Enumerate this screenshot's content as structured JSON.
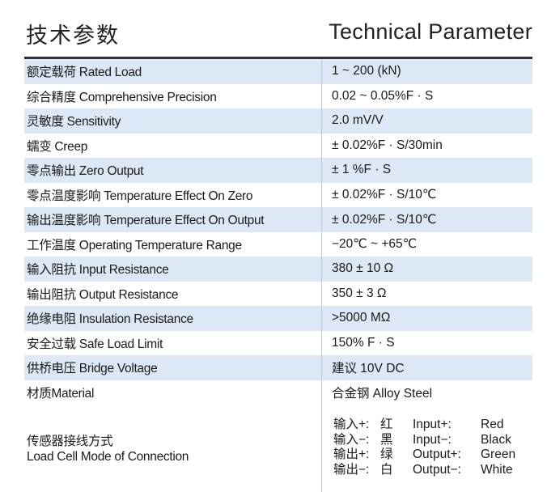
{
  "header": {
    "title_cn": "技术参数",
    "title_en": "Technical Parameter"
  },
  "rows": [
    {
      "name": "额定载荷 Rated Load",
      "value": "1 ~ 200 (kN)"
    },
    {
      "name": "综合精度 Comprehensive Precision",
      "value": "0.02  ~  0.05%F · S"
    },
    {
      "name": "灵敏度 Sensitivity",
      "value": "2.0 mV/V"
    },
    {
      "name": "蠕变 Creep",
      "value": "± 0.02%F · S/30min"
    },
    {
      "name": "零点输出 Zero Output",
      "value": "± 1 %F · S"
    },
    {
      "name": "零点温度影响 Temperature Effect On Zero",
      "value": "± 0.02%F · S/10℃"
    },
    {
      "name": "输出温度影响 Temperature Effect On Output",
      "value": "± 0.02%F · S/10℃"
    },
    {
      "name": "工作温度 Operating Temperature Range",
      "value": "−20℃ ~ +65℃"
    },
    {
      "name": "输入阻抗 Input Resistance",
      "value": "380 ± 10  Ω"
    },
    {
      "name": "输出阻抗 Output Resistance",
      "value": "350 ± 3  Ω"
    },
    {
      "name": "绝缘电阻 Insulation Resistance",
      "value": ">5000 MΩ"
    },
    {
      "name": "安全过载 Safe Load Limit",
      "value": "150% F · S"
    },
    {
      "name": "供桥电压 Bridge Voltage",
      "value": "建议 10V DC"
    },
    {
      "name": "材质Material",
      "value": "合金钢 Alloy Steel"
    }
  ],
  "connection": {
    "name_cn": "传感器接线方式",
    "name_en": "Load Cell Mode of Connection",
    "wires": [
      {
        "cn_label": "输入+:",
        "cn_color": "红",
        "en_label": "Input+:",
        "en_color": "Red"
      },
      {
        "cn_label": "输入−:",
        "cn_color": "黑",
        "en_label": "Input−:",
        "en_color": "Black"
      },
      {
        "cn_label": "输出+:",
        "cn_color": "绿",
        "en_label": "Output+:",
        "en_color": "Green"
      },
      {
        "cn_label": "输出−:",
        "cn_color": "白",
        "en_label": "Output−:",
        "en_color": "White"
      }
    ]
  },
  "colors": {
    "shade": "#dce8f5",
    "rule": "#333333"
  }
}
